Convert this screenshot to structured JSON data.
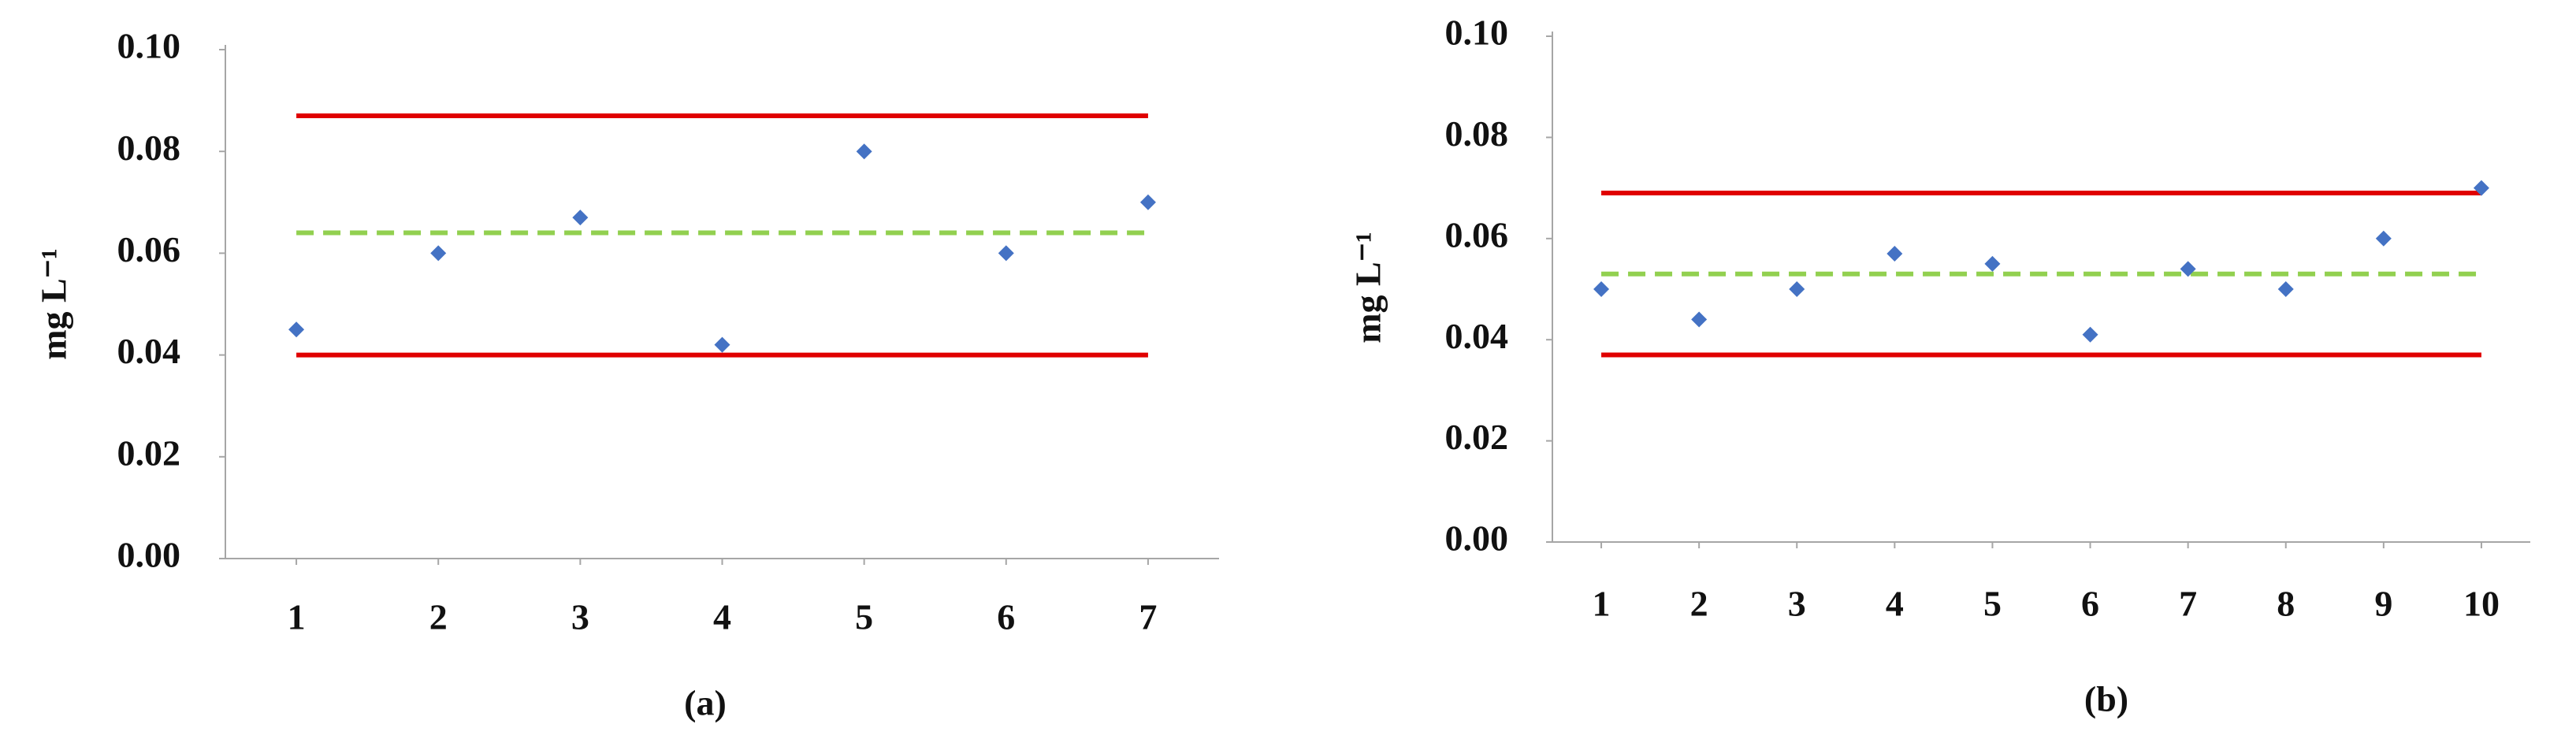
{
  "chart_data": [
    {
      "type": "scatter",
      "caption": "(a)",
      "y_label": "mg L⁻¹",
      "x": [
        1,
        2,
        3,
        4,
        5,
        6,
        7
      ],
      "series": [
        {
          "color": "#4472c4",
          "values": [
            0.045,
            0.06,
            0.067,
            0.042,
            0.08,
            0.06,
            0.07
          ]
        }
      ],
      "lines": [
        {
          "value": 0.087,
          "color": "#e00000",
          "style": "solid"
        },
        {
          "value": 0.064,
          "color": "#92d050",
          "style": "dashed"
        },
        {
          "value": 0.04,
          "color": "#e00000",
          "style": "solid"
        }
      ],
      "xlim": [
        0.5,
        7.5
      ],
      "xticks": [
        1,
        2,
        3,
        4,
        5,
        6,
        7
      ],
      "ylim": [
        0,
        0.1
      ],
      "yticks": [
        {
          "value": 0,
          "label": "0.00"
        },
        {
          "value": 0.02,
          "label": "0.02"
        },
        {
          "value": 0.04,
          "label": "0.04"
        },
        {
          "value": 0.06,
          "label": "0.06"
        },
        {
          "value": 0.08,
          "label": "0.08"
        },
        {
          "value": 0.1,
          "label": "0.10"
        }
      ]
    },
    {
      "type": "scatter",
      "caption": "(b)",
      "y_label": "mg L⁻¹",
      "x": [
        1,
        2,
        3,
        4,
        5,
        6,
        7,
        8,
        9,
        10
      ],
      "series": [
        {
          "color": "#4472c4",
          "values": [
            0.05,
            0.044,
            0.05,
            0.057,
            0.055,
            0.041,
            0.054,
            0.05,
            0.06,
            0.07
          ]
        }
      ],
      "lines": [
        {
          "value": 0.069,
          "color": "#e00000",
          "style": "solid"
        },
        {
          "value": 0.053,
          "color": "#92d050",
          "style": "dashed"
        },
        {
          "value": 0.037,
          "color": "#e00000",
          "style": "solid"
        }
      ],
      "xlim": [
        0.5,
        10.5
      ],
      "xticks": [
        1,
        2,
        3,
        4,
        5,
        6,
        7,
        8,
        9,
        10
      ],
      "ylim": [
        0,
        0.1
      ],
      "yticks": [
        {
          "value": 0,
          "label": "0.00"
        },
        {
          "value": 0.02,
          "label": "0.02"
        },
        {
          "value": 0.04,
          "label": "0.04"
        },
        {
          "value": 0.06,
          "label": "0.06"
        },
        {
          "value": 0.08,
          "label": "0.08"
        },
        {
          "value": 0.1,
          "label": "0.10"
        }
      ]
    }
  ]
}
